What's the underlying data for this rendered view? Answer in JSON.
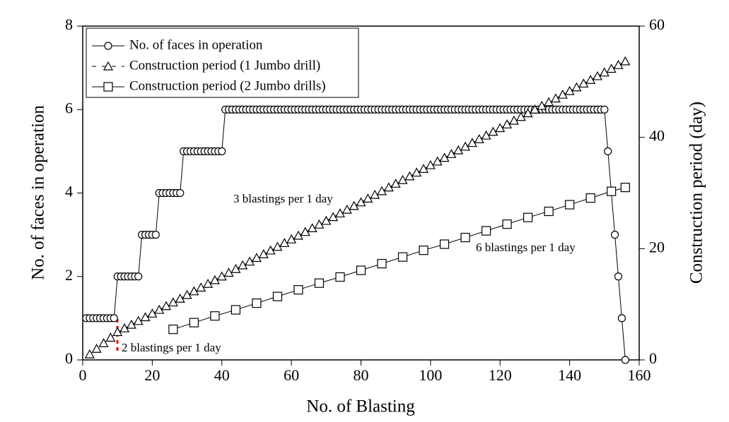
{
  "chart_data": {
    "type": "line",
    "xlabel": "No. of Blasting",
    "ylabel": "No. of faces in operation",
    "y2label": "Construction period (day)",
    "xlim": [
      0,
      160
    ],
    "xticks": [
      0,
      20,
      40,
      60,
      80,
      100,
      120,
      140,
      160
    ],
    "ylim": [
      0,
      8
    ],
    "yticks": [
      0,
      2,
      4,
      6,
      8
    ],
    "y2lim": [
      0,
      60
    ],
    "y2ticks": [
      0,
      20,
      40,
      60
    ],
    "legend": "upper left",
    "annotations": [
      "3 blastings per 1 day",
      "6 blastings per 1 day",
      "2 blastings per 1 day"
    ],
    "series": [
      {
        "name": "No. of faces in operation",
        "color": "#000000",
        "marker": "circle",
        "linestyle": "solid",
        "x": [
          1,
          2,
          3,
          4,
          5,
          6,
          7,
          8,
          9,
          10,
          11,
          12,
          13,
          14,
          15,
          16,
          17,
          18,
          19,
          20,
          21,
          22,
          23,
          24,
          25,
          26,
          27,
          28,
          29,
          30,
          31,
          32,
          33,
          34,
          35,
          36,
          37,
          38,
          39,
          40,
          41,
          42,
          43,
          44,
          45,
          46,
          47,
          48,
          49,
          50,
          51,
          52,
          53,
          54,
          55,
          56,
          57,
          58,
          59,
          60,
          61,
          62,
          63,
          64,
          65,
          66,
          67,
          68,
          69,
          70,
          71,
          72,
          73,
          74,
          75,
          76,
          77,
          78,
          79,
          80,
          81,
          82,
          83,
          84,
          85,
          86,
          87,
          88,
          89,
          90,
          91,
          92,
          93,
          94,
          95,
          96,
          97,
          98,
          99,
          100,
          101,
          102,
          103,
          104,
          105,
          106,
          107,
          108,
          109,
          110,
          111,
          112,
          113,
          114,
          115,
          116,
          117,
          118,
          119,
          120,
          121,
          122,
          123,
          124,
          125,
          126,
          127,
          128,
          129,
          130,
          131,
          132,
          133,
          134,
          135,
          136,
          137,
          138,
          139,
          140,
          141,
          142,
          143,
          144,
          145,
          146,
          147,
          148,
          149,
          150,
          151,
          153,
          154,
          155,
          156
        ],
        "values": [
          1,
          1,
          1,
          1,
          1,
          1,
          1,
          1,
          1,
          2,
          2,
          2,
          2,
          2,
          2,
          2,
          3,
          3,
          3,
          3,
          3,
          4,
          4,
          4,
          4,
          4,
          4,
          4,
          5,
          5,
          5,
          5,
          5,
          5,
          5,
          5,
          5,
          5,
          5,
          5,
          6,
          6,
          6,
          6,
          6,
          6,
          6,
          6,
          6,
          6,
          6,
          6,
          6,
          6,
          6,
          6,
          6,
          6,
          6,
          6,
          6,
          6,
          6,
          6,
          6,
          6,
          6,
          6,
          6,
          6,
          6,
          6,
          6,
          6,
          6,
          6,
          6,
          6,
          6,
          6,
          6,
          6,
          6,
          6,
          6,
          6,
          6,
          6,
          6,
          6,
          6,
          6,
          6,
          6,
          6,
          6,
          6,
          6,
          6,
          6,
          6,
          6,
          6,
          6,
          6,
          6,
          6,
          6,
          6,
          6,
          6,
          6,
          6,
          6,
          6,
          6,
          6,
          6,
          6,
          6,
          6,
          6,
          6,
          6,
          6,
          6,
          6,
          6,
          6,
          6,
          6,
          6,
          6,
          6,
          6,
          6,
          6,
          6,
          6,
          6,
          6,
          6,
          6,
          6,
          6,
          6,
          6,
          6,
          6,
          6,
          5,
          3,
          2,
          1,
          0
        ]
      },
      {
        "name": "Construction period (1 Jumbo drill)",
        "color": "#000000",
        "marker": "triangle",
        "linestyle": "dashed",
        "axis": "y2",
        "x": [
          2,
          4,
          6,
          8,
          10,
          12,
          14,
          16,
          18,
          20,
          22,
          24,
          26,
          28,
          30,
          32,
          34,
          36,
          38,
          40,
          42,
          44,
          46,
          48,
          50,
          52,
          54,
          56,
          58,
          60,
          62,
          64,
          66,
          68,
          70,
          72,
          74,
          76,
          78,
          80,
          82,
          84,
          86,
          88,
          90,
          92,
          94,
          96,
          98,
          100,
          102,
          104,
          106,
          108,
          110,
          112,
          114,
          116,
          118,
          120,
          122,
          124,
          126,
          128,
          130,
          132,
          134,
          136,
          138,
          140,
          142,
          144,
          146,
          148,
          150,
          152,
          154,
          156
        ],
        "values": [
          1,
          2,
          3,
          4,
          5,
          5.67,
          6.33,
          7,
          7.67,
          8.33,
          9,
          9.67,
          10.33,
          11,
          11.67,
          12.33,
          13,
          13.67,
          14.33,
          15,
          15.67,
          16.33,
          17,
          17.67,
          18.33,
          19,
          19.67,
          20.33,
          21,
          21.67,
          22.33,
          23,
          23.67,
          24.33,
          25,
          25.67,
          26.33,
          27,
          27.67,
          28.33,
          29,
          29.67,
          30.33,
          31,
          31.67,
          32.33,
          33,
          33.67,
          34.33,
          35,
          35.67,
          36.33,
          37,
          37.67,
          38.33,
          39,
          39.67,
          40.33,
          41,
          41.67,
          42.33,
          43,
          43.67,
          44.33,
          45,
          45.67,
          46.33,
          47,
          47.67,
          48.33,
          49,
          49.67,
          50.33,
          51,
          51.67,
          52.33,
          53,
          53.67
        ]
      },
      {
        "name": "Construction period (2 Jumbo drills)",
        "color": "#000000",
        "marker": "square",
        "linestyle": "solid",
        "axis": "y2",
        "x": [
          26,
          32,
          38,
          44,
          50,
          56,
          62,
          68,
          74,
          80,
          86,
          92,
          98,
          104,
          110,
          116,
          122,
          128,
          134,
          140,
          146,
          152,
          156
        ],
        "values": [
          5.5,
          6.7,
          7.9,
          9.0,
          10.2,
          11.4,
          12.6,
          13.8,
          14.9,
          16.1,
          17.3,
          18.5,
          19.7,
          20.8,
          22.0,
          23.2,
          24.4,
          25.6,
          26.7,
          27.9,
          29.1,
          30.3,
          31.0
        ]
      }
    ]
  }
}
